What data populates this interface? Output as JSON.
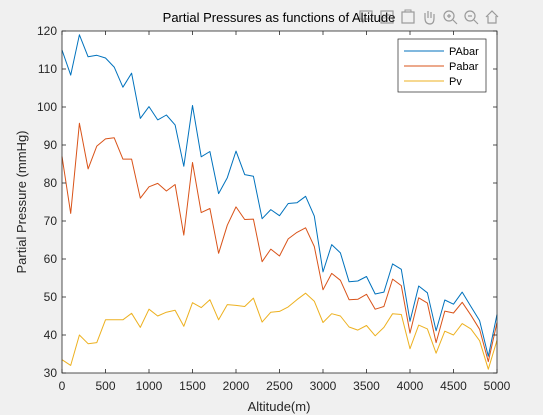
{
  "chart_data": {
    "type": "line",
    "title": "Partial Pressures as functions of Altitude",
    "xlabel": "Altitude(m)",
    "ylabel": "Partial Pressure (mmHg)",
    "xlim": [
      0,
      5000
    ],
    "ylim": [
      30,
      120
    ],
    "xticks": [
      0,
      500,
      1000,
      1500,
      2000,
      2500,
      3000,
      3500,
      4000,
      4500,
      5000
    ],
    "yticks": [
      30,
      40,
      50,
      60,
      70,
      80,
      90,
      100,
      110,
      120
    ],
    "grid": false,
    "legend_location": "top-right",
    "x": [
      0,
      100,
      200,
      300,
      400,
      500,
      600,
      700,
      800,
      900,
      1000,
      1100,
      1200,
      1300,
      1400,
      1500,
      1600,
      1700,
      1800,
      1900,
      2000,
      2100,
      2200,
      2300,
      2400,
      2500,
      2600,
      2700,
      2800,
      2900,
      3000,
      3100,
      3200,
      3300,
      3400,
      3500,
      3600,
      3700,
      3800,
      3900,
      4000,
      4100,
      4200,
      4300,
      4400,
      4500,
      4600,
      4700,
      4800,
      4900,
      5000
    ],
    "series": [
      {
        "name": "PAbar",
        "color": "#0072bd",
        "values": [
          115.0,
          108.4,
          119.0,
          113.2,
          113.6,
          112.9,
          110.5,
          105.2,
          108.9,
          97.0,
          100.1,
          96.6,
          97.9,
          95.3,
          84.4,
          100.4,
          86.9,
          88.3,
          77.2,
          81.4,
          88.4,
          82.2,
          81.8,
          70.6,
          73.0,
          71.4,
          74.6,
          74.8,
          76.5,
          71.3,
          56.6,
          63.8,
          61.6,
          54.0,
          54.2,
          55.4,
          50.8,
          51.3,
          58.7,
          57.3,
          43.6,
          52.9,
          51.1,
          41.1,
          49.2,
          48.1,
          51.3,
          47.5,
          43.8,
          34.4,
          45.4
        ]
      },
      {
        "name": "Pabar",
        "color": "#d95319",
        "values": [
          87.0,
          72.0,
          95.7,
          83.7,
          89.7,
          91.6,
          91.9,
          86.3,
          86.3,
          76.0,
          79.0,
          79.9,
          77.9,
          79.6,
          66.3,
          85.4,
          72.2,
          73.3,
          61.5,
          68.9,
          73.7,
          70.4,
          70.5,
          59.3,
          62.6,
          60.8,
          65.3,
          67.0,
          68.2,
          63.3,
          51.9,
          56.2,
          54.4,
          49.3,
          49.4,
          50.7,
          46.8,
          47.5,
          54.7,
          53.0,
          40.5,
          49.8,
          48.4,
          38.0,
          46.3,
          45.8,
          48.6,
          45.2,
          41.5,
          33.0,
          43.3
        ]
      },
      {
        "name": "Pv",
        "color": "#edb120",
        "values": [
          33.5,
          32.0,
          40.0,
          37.7,
          38.0,
          44.0,
          44.0,
          44.0,
          45.7,
          42.0,
          46.8,
          45.0,
          46.0,
          46.5,
          42.3,
          48.5,
          47.2,
          49.3,
          44.0,
          48.0,
          47.8,
          47.5,
          49.7,
          43.4,
          46.0,
          46.2,
          47.4,
          49.3,
          51.0,
          48.9,
          43.3,
          45.6,
          45.0,
          42.1,
          41.3,
          42.5,
          39.8,
          42.0,
          45.6,
          45.4,
          36.4,
          42.6,
          41.6,
          35.2,
          41.0,
          40.0,
          43.0,
          41.6,
          38.5,
          31.0,
          38.6
        ]
      }
    ]
  },
  "toolbar": {
    "icons": [
      "data-tips-icon",
      "brush-icon",
      "export-icon",
      "pan-icon",
      "zoom-in-icon",
      "zoom-out-icon",
      "home-icon"
    ]
  }
}
